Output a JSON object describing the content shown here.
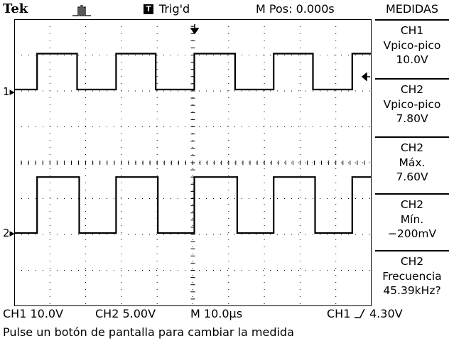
{
  "header": {
    "brand": "Tek",
    "acq_icon": "acquisition-run-icon",
    "trigger_badge": "T",
    "trigger_status": "Trig'd",
    "m_pos": "M Pos: 0.000s"
  },
  "menu": {
    "title": "MEDIDAS",
    "buttons": [
      {
        "source": "CH1",
        "type": "Vpico-pico",
        "value": "10.0V"
      },
      {
        "source": "CH2",
        "type": "Vpico-pico",
        "value": "7.80V"
      },
      {
        "source": "CH2",
        "type": "Máx.",
        "value": "7.60V"
      },
      {
        "source": "CH2",
        "type": "Mín.",
        "value": "−200mV"
      },
      {
        "source": "CH2",
        "type": "Frecuencia",
        "value": "45.39kHz?"
      }
    ]
  },
  "markers": {
    "ch1_ground": "1",
    "ch2_ground": "2"
  },
  "status": {
    "ch1_scale": "CH1  10.0V",
    "ch2_scale": "CH2  5.00V",
    "timebase": "M 10.0µs",
    "trigger_source": "CH1",
    "trigger_level": "4.30V"
  },
  "footer": {
    "message": "Pulse un botón de pantalla para cambiar la medida"
  },
  "colors": {
    "trace": "#000000",
    "background": "#ffffff",
    "grid": "#000000"
  },
  "chart_data": {
    "type": "line",
    "title": "",
    "time_per_div_us": 10,
    "divisions": {
      "x": 10,
      "y": 8
    },
    "period_us": 22.03,
    "series": [
      {
        "name": "CH1",
        "volts_per_div": 10,
        "low_v": 0,
        "high_v": 10,
        "edges_us": [
          [
            6.4,
            "rise"
          ],
          [
            17.6,
            "fall"
          ],
          [
            28.5,
            "rise"
          ],
          [
            39.6,
            "fall"
          ],
          [
            50.4,
            "rise"
          ],
          [
            61.8,
            "fall"
          ],
          [
            72.6,
            "rise"
          ],
          [
            83.6,
            "fall"
          ],
          [
            94.6,
            "rise"
          ]
        ]
      },
      {
        "name": "CH2",
        "volts_per_div": 5,
        "low_v": -0.2,
        "high_v": 7.6,
        "edges_us": [
          [
            6.4,
            "rise"
          ],
          [
            18.2,
            "fall"
          ],
          [
            28.5,
            "rise"
          ],
          [
            40.2,
            "fall"
          ],
          [
            50.4,
            "rise"
          ],
          [
            62.4,
            "fall"
          ],
          [
            72.6,
            "rise"
          ],
          [
            84.2,
            "fall"
          ],
          [
            94.6,
            "rise"
          ]
        ]
      }
    ]
  }
}
